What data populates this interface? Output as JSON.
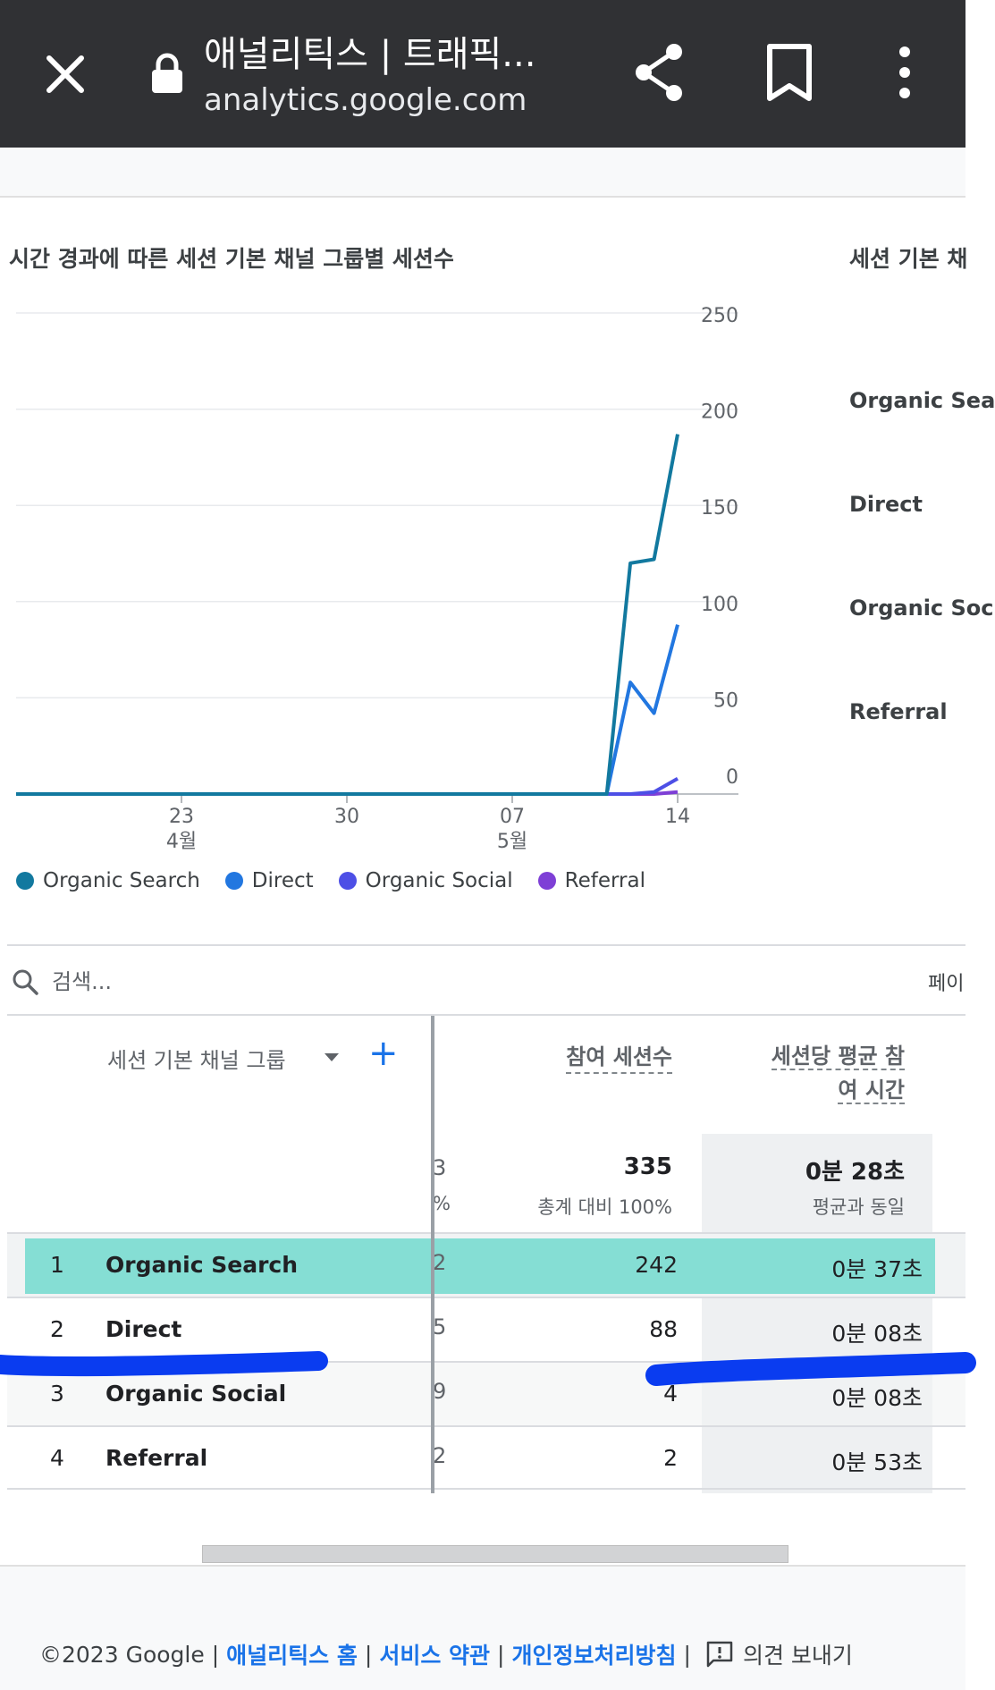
{
  "browser": {
    "title": "애널리틱스 | 트래픽...",
    "url": "analytics.google.com",
    "icons": [
      "close-icon",
      "lock-icon",
      "share-icon",
      "bookmark-icon",
      "more-vert-icon"
    ]
  },
  "chart_card": {
    "title": "시간 경과에 따른 세션 기본 채널 그룹별 세션수",
    "side_title": "세션 기본 채",
    "side_labels": [
      "Organic Sea",
      "Direct",
      "Organic Soc",
      "Referral"
    ]
  },
  "chart_data": {
    "type": "line",
    "title": "시간 경과에 따른 세션 기본 채널 그룹별 세션수",
    "x_labels": [
      {
        "day": "23",
        "month": "4월",
        "index": 7
      },
      {
        "day": "30",
        "month": "",
        "index": 14
      },
      {
        "day": "07",
        "month": "5월",
        "index": 21
      },
      {
        "day": "14",
        "month": "",
        "index": 28
      }
    ],
    "x_count": 29,
    "y_ticks": [
      0,
      50,
      100,
      150,
      200,
      250
    ],
    "ylim": [
      0,
      250
    ],
    "axis_position": "right",
    "legend_position": "bottom",
    "series": [
      {
        "name": "Organic Search",
        "color": "#12799f",
        "values": [
          0,
          0,
          0,
          0,
          0,
          0,
          0,
          0,
          0,
          0,
          0,
          0,
          0,
          0,
          0,
          0,
          0,
          0,
          0,
          0,
          0,
          0,
          0,
          0,
          0,
          0,
          120,
          122,
          187
        ]
      },
      {
        "name": "Direct",
        "color": "#2277e0",
        "values": [
          0,
          0,
          0,
          0,
          0,
          0,
          0,
          0,
          0,
          0,
          0,
          0,
          0,
          0,
          0,
          0,
          0,
          0,
          0,
          0,
          0,
          0,
          0,
          0,
          0,
          0,
          58,
          42,
          88
        ]
      },
      {
        "name": "Organic Social",
        "color": "#4d4fe6",
        "values": [
          0,
          0,
          0,
          0,
          0,
          0,
          0,
          0,
          0,
          0,
          0,
          0,
          0,
          0,
          0,
          0,
          0,
          0,
          0,
          0,
          0,
          0,
          0,
          0,
          0,
          0,
          0,
          1,
          8
        ]
      },
      {
        "name": "Referral",
        "color": "#7e3fd6",
        "values": [
          0,
          0,
          0,
          0,
          0,
          0,
          0,
          0,
          0,
          0,
          0,
          0,
          0,
          0,
          0,
          0,
          0,
          0,
          0,
          0,
          0,
          0,
          0,
          0,
          0,
          0,
          0,
          0,
          1
        ]
      }
    ]
  },
  "legend": [
    "Organic Search",
    "Direct",
    "Organic Social",
    "Referral"
  ],
  "search": {
    "placeholder": "검색...",
    "page_label": "페이"
  },
  "table": {
    "dimension_header": "세션 기본 채널 그룹",
    "col1_header": "참여 세션수",
    "col2_header_line1": "세션당 평균 참",
    "col2_header_line2": "여 시간",
    "totals": {
      "partial": "3",
      "partial_sub": "%",
      "col1": "335",
      "col1_sub": "총계 대비 100%",
      "col2": "0분 28초",
      "col2_sub": "평균과 동일"
    },
    "rows": [
      {
        "rank": "1",
        "channel": "Organic Search",
        "partial": "2",
        "engaged": "242",
        "avg_time": "0분 37초"
      },
      {
        "rank": "2",
        "channel": "Direct",
        "partial": "5",
        "engaged": "88",
        "avg_time": "0분 08초"
      },
      {
        "rank": "3",
        "channel": "Organic Social",
        "partial": "9",
        "engaged": "4",
        "avg_time": "0분 08초"
      },
      {
        "rank": "4",
        "channel": "Referral",
        "partial": "2",
        "engaged": "2",
        "avg_time": "0분 53초"
      }
    ]
  },
  "footer": {
    "copyright": "©2023 Google",
    "links": [
      "애널리틱스 홈",
      "서비스 약관",
      "개인정보처리방침"
    ],
    "feedback": "의견 보내기"
  }
}
